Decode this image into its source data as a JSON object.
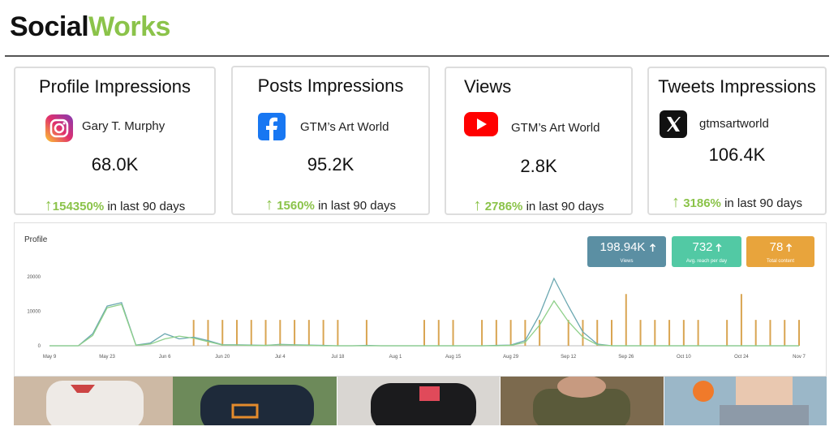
{
  "header": {
    "brand_left": "Social",
    "brand_right": "Works"
  },
  "cards": [
    {
      "title": "Profile Impressions",
      "account": "Gary T. Murphy",
      "value": "68.0K",
      "change": "154350%",
      "period": "in last 90 days"
    },
    {
      "title": "Posts Impressions",
      "account": "GTM’s Art World",
      "value": "95.2K",
      "change": "1560%",
      "period": "in last 90 days"
    },
    {
      "title": "Views",
      "account": "GTM’s Art World",
      "value": "2.8K",
      "change": "2786%",
      "period": "in last 90 days"
    },
    {
      "title": "Tweets Impressions",
      "account": "gtmsartworld",
      "value": "106.4K",
      "change": "3186%",
      "period": "in last 90 days"
    }
  ],
  "panel": {
    "title": "Profile",
    "stats": [
      {
        "value": "198.94K",
        "label": "Views",
        "color": "#5b8fa3"
      },
      {
        "value": "732",
        "label": "Avg. reach per day",
        "color": "#52c9a4"
      },
      {
        "value": "78",
        "label": "Total content",
        "color": "#e8a43c"
      }
    ],
    "chart": {
      "type": "line",
      "categories": [
        "May 9",
        null,
        null,
        null,
        "May 23",
        null,
        null,
        null,
        "Jun 6",
        null,
        null,
        null,
        "Jun 20",
        null,
        null,
        null,
        "Jul 4",
        null,
        null,
        null,
        "Jul 18",
        null,
        null,
        null,
        "Aug 1",
        null,
        null,
        null,
        "Aug 15",
        null,
        null,
        null,
        "Aug 29",
        null,
        null,
        null,
        "Sep 12",
        null,
        null,
        null,
        "Sep 26",
        null,
        null,
        null,
        "Oct 10",
        null,
        null,
        null,
        "Oct 24",
        null,
        null,
        null,
        "Nov 7"
      ],
      "ylim": [
        0,
        20000
      ],
      "yticks": [
        0,
        10000,
        20000
      ],
      "series": [
        {
          "type": "line",
          "color": "#6aa7b0",
          "values": [
            0,
            0,
            0,
            3500,
            11500,
            12500,
            200,
            800,
            3500,
            2000,
            2500,
            1500,
            300,
            300,
            200,
            100,
            400,
            300,
            200,
            100,
            0,
            0,
            100,
            0,
            0,
            0,
            0,
            0,
            0,
            0,
            0,
            100,
            200,
            1500,
            9000,
            19500,
            11500,
            4000,
            500,
            0,
            0,
            0,
            0,
            0,
            0,
            0,
            0,
            0,
            0,
            0,
            0,
            0,
            0
          ]
        },
        {
          "type": "line",
          "color": "#8fd08a",
          "values": [
            0,
            0,
            0,
            3000,
            11000,
            12000,
            100,
            500,
            2000,
            2800,
            2200,
            1200,
            200,
            200,
            100,
            100,
            300,
            200,
            100,
            0,
            0,
            0,
            0,
            0,
            0,
            0,
            0,
            0,
            0,
            0,
            0,
            0,
            100,
            1000,
            6000,
            13000,
            7000,
            2500,
            300,
            0,
            0,
            0,
            0,
            0,
            0,
            0,
            0,
            0,
            0,
            0,
            0,
            0,
            0
          ]
        },
        {
          "type": "bar",
          "color": "#d9a552",
          "values": [
            0,
            0,
            0,
            0,
            0,
            0,
            0,
            0,
            0,
            0,
            7500,
            7500,
            7500,
            7500,
            7500,
            7500,
            7500,
            7500,
            7500,
            7500,
            7500,
            0,
            7500,
            0,
            0,
            0,
            7500,
            7500,
            7500,
            0,
            7500,
            7500,
            7500,
            7500,
            7500,
            0,
            7500,
            7500,
            7500,
            7500,
            15000,
            7500,
            7500,
            7500,
            7500,
            7500,
            0,
            7500,
            15000,
            7500,
            7500,
            7500,
            7500
          ]
        }
      ]
    }
  }
}
